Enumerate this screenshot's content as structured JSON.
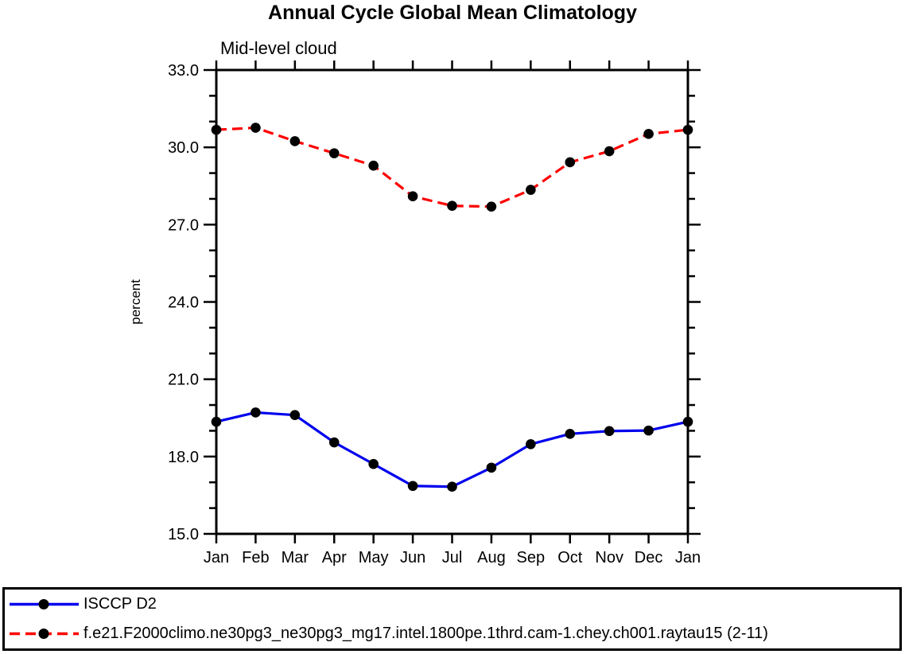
{
  "chart_data": {
    "type": "line",
    "title": "Annual Cycle Global Mean Climatology",
    "subtitle": "Mid-level cloud",
    "ylabel": "percent",
    "xlabel": "",
    "grid": false,
    "legend_position": "bottom-box",
    "categories": [
      "Jan",
      "Feb",
      "Mar",
      "Apr",
      "May",
      "Jun",
      "Jul",
      "Aug",
      "Sep",
      "Oct",
      "Nov",
      "Dec",
      "Jan"
    ],
    "ylim": [
      15.0,
      33.0
    ],
    "y_major_step": 3.0,
    "y_minor_step": 1.0,
    "y_tick_labels": [
      "15.0",
      "18.0",
      "21.0",
      "24.0",
      "27.0",
      "30.0",
      "33.0"
    ],
    "series": [
      {
        "name": "ISCCP D2",
        "color": "#0000ee",
        "line_style": "solid",
        "marker": "filled-circle",
        "marker_color": "#000000",
        "values": [
          19.35,
          19.71,
          19.61,
          18.55,
          17.71,
          16.86,
          16.83,
          17.57,
          18.48,
          18.88,
          18.99,
          19.01,
          19.35
        ]
      },
      {
        "name": "f.e21.F2000climo.ne30pg3_ne30pg3_mg17.intel.1800pe.1thrd.cam-1.chey.ch001.raytau15 (2-11)",
        "color": "#ff0000",
        "line_style": "dashed",
        "marker": "filled-circle",
        "marker_color": "#000000",
        "values": [
          30.68,
          30.76,
          30.24,
          29.77,
          29.29,
          28.1,
          27.73,
          27.7,
          28.35,
          29.42,
          29.85,
          30.52,
          30.68
        ]
      }
    ],
    "axis_color": "#000000",
    "background_color": "#ffffff"
  }
}
